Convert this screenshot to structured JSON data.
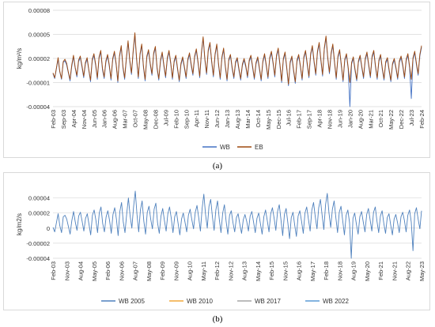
{
  "captions": {
    "a": "(a)",
    "b": "(b)"
  },
  "chart_data": [
    {
      "type": "line",
      "ylabel": "kg/m²/s",
      "ylim": [
        -4e-05,
        8e-05
      ],
      "yticks": [
        "0.00008",
        "0.00005",
        "0.00002",
        "-0.00001",
        "-0.00004"
      ],
      "ytick_values": [
        8e-05,
        5e-05,
        2e-05,
        -1e-05,
        -4e-05
      ],
      "xticks": [
        "Feb-03",
        "Sep-03",
        "Apr-04",
        "Nov-04",
        "Jun-05",
        "Jan-06",
        "Aug-06",
        "Mar-07",
        "Oct-07",
        "May-08",
        "Dec-08",
        "Jul-09",
        "Feb-10",
        "Sep-10",
        "Apr-11",
        "Nov-11",
        "Jun-12",
        "Jan-13",
        "Aug-13",
        "Mar-14",
        "Oct-14",
        "May-15",
        "Dec-15",
        "Jul-16",
        "Feb-17",
        "Sep-17",
        "Apr-18",
        "Nov-18",
        "Jun-19",
        "Jan-20",
        "Aug-20",
        "Mar-21",
        "Oct-21",
        "May-22",
        "Dec-22",
        "Jul-23",
        "Feb-24"
      ],
      "legend": {
        "placement": "bottom",
        "entries": [
          "WB",
          "EB"
        ]
      },
      "colors": {
        "WB": "#4472c4",
        "EB": "#9e480e"
      },
      "grid": true,
      "x": {
        "start": "Feb-03",
        "end": "Feb-24",
        "step": "month"
      },
      "series": [
        {
          "name": "EB",
          "values": [
            2e-06,
            -4e-06,
            8e-06,
            2.1e-05,
            4e-06,
            -5e-06,
            1.6e-05,
            1.9e-05,
            1.4e-05,
            3e-06,
            -6e-06,
            1.2e-05,
            2.4e-05,
            9e-06,
            -1e-06,
            1.8e-05,
            2.3e-05,
            1.1e-05,
            -2e-06,
            1.5e-05,
            2.1e-05,
            6e-06,
            -7e-06,
            1.9e-05,
            2.6e-05,
            1.3e-05,
            -4e-06,
            2.2e-05,
            3e-05,
            8e-06,
            -3e-06,
            1.7e-05,
            2.5e-05,
            1.2e-05,
            -5e-06,
            2e-05,
            2.9e-05,
            1.4e-05,
            -8e-06,
            2.4e-05,
            3.6e-05,
            1e-05,
            -4e-06,
            2.1e-05,
            4.2e-05,
            1.8e-05,
            2e-06,
            3e-05,
            5.2e-05,
            2e-05,
            -3e-06,
            2.6e-05,
            3.8e-05,
            1.1e-05,
            -6e-06,
            2.3e-05,
            3.1e-05,
            1.4e-05,
            1e-06,
            2.7e-05,
            3.5e-05,
            9e-06,
            -5e-06,
            1.8e-05,
            2.8e-05,
            1.2e-05,
            -2e-06,
            2.1e-05,
            3e-05,
            1.5e-05,
            -4e-06,
            1.7e-05,
            2.4e-05,
            8e-06,
            -7e-06,
            1.4e-05,
            2.2e-05,
            1e-05,
            -3e-06,
            1.9e-05,
            2.7e-05,
            1.3e-05,
            1e-06,
            2.3e-05,
            3.2e-05,
            1.6e-05,
            -2e-06,
            2.8e-05,
            4.7e-05,
            2e-05,
            2e-06,
            3.1e-05,
            4e-05,
            1.7e-05,
            -1e-06,
            2.6e-05,
            3.8e-05,
            1.4e-05,
            -4e-06,
            2.2e-05,
            3.3e-05,
            1.1e-05,
            -6e-06,
            1.9e-05,
            2.5e-05,
            9e-06,
            -3e-06,
            1.6e-05,
            2.1e-05,
            7e-06,
            -5e-06,
            1.3e-05,
            2e-05,
            1.1e-05,
            -2e-06,
            1.8e-05,
            2.4e-05,
            1e-05,
            -4e-06,
            1.5e-05,
            2.2e-05,
            8e-06,
            -6e-06,
            1.7e-05,
            2.6e-05,
            1.2e-05,
            -3e-06,
            2.1e-05,
            2.9e-05,
            1.5e-05,
            -1e-06,
            2.4e-05,
            3.3e-05,
            1.3e-05,
            -8e-06,
            2e-05,
            2.8e-05,
            9e-06,
            -1.2e-05,
            1.6e-05,
            2.3e-05,
            6e-06,
            -9e-06,
            1.8e-05,
            2.5e-05,
            1.1e-05,
            -5e-06,
            2.2e-05,
            3e-05,
            1.4e-05,
            -2e-06,
            2.6e-05,
            3.6e-05,
            1.7e-05,
            1e-06,
            2.9e-05,
            4e-05,
            1.9e-05,
            0.0,
            3.3e-05,
            4.8e-05,
            2.2e-05,
            3e-06,
            2.7e-05,
            3.8e-05,
            1.6e-05,
            -4e-06,
            2.3e-05,
            3.1e-05,
            1.2e-05,
            -7e-06,
            1.9e-05,
            2.6e-05,
            9e-06,
            -1e-05,
            1.5e-05,
            2.2e-05,
            7e-06,
            -6e-06,
            1.7e-05,
            2.4e-05,
            1e-05,
            -3e-06,
            2e-05,
            2.8e-05,
            1.3e-05,
            -2e-06,
            2.3e-05,
            3e-05,
            1.1e-05,
            -4e-06,
            1.8e-05,
            2.5e-05,
            8e-06,
            -5e-06,
            1.6e-05,
            2.1e-05,
            6e-06,
            -7e-06,
            1.4e-05,
            2e-05,
            9e-06,
            -4e-06,
            1.7e-05,
            2.3e-05,
            1.2e-05,
            -3e-06,
            1.9e-05,
            2.6e-05,
            1e-05,
            -6e-06,
            2.1e-05,
            2.9e-05,
            1.4e-05,
            1e-06,
            2.5e-05,
            3.6e-05
          ],
          "note_values_start": "Feb-03"
        },
        {
          "name": "WB",
          "values": [
            1e-06,
            -5e-06,
            7e-06,
            1.9e-05,
            3e-06,
            -6e-06,
            1.5e-05,
            1.7e-05,
            1.2e-05,
            2e-06,
            -8e-06,
            1e-05,
            2.2e-05,
            8e-06,
            -3e-06,
            1.6e-05,
            2.1e-05,
            9e-06,
            -4e-06,
            1.3e-05,
            1.9e-05,
            5e-06,
            -9e-06,
            1.7e-05,
            2.4e-05,
            1.1e-05,
            -6e-06,
            2e-05,
            2.8e-05,
            6e-06,
            -5e-06,
            1.5e-05,
            2.3e-05,
            1e-05,
            -7e-06,
            1.8e-05,
            2.7e-05,
            1.2e-05,
            -1e-05,
            2.2e-05,
            3.4e-05,
            8e-06,
            -6e-06,
            1.9e-05,
            4e-05,
            1.6e-05,
            0.0,
            2.8e-05,
            4.9e-05,
            1.8e-05,
            -5e-06,
            2.4e-05,
            3.6e-05,
            9e-06,
            -8e-06,
            2.1e-05,
            2.9e-05,
            1.2e-05,
            -1e-06,
            2.5e-05,
            3.3e-05,
            7e-06,
            -7e-06,
            1.6e-05,
            2.6e-05,
            1e-05,
            -4e-06,
            1.9e-05,
            2.8e-05,
            1.3e-05,
            -6e-06,
            1.5e-05,
            2.2e-05,
            6e-06,
            -9e-06,
            1.2e-05,
            2e-05,
            8e-06,
            -5e-06,
            1.7e-05,
            2.5e-05,
            1.1e-05,
            -1e-06,
            2.1e-05,
            3e-05,
            1.4e-05,
            -4e-06,
            2.6e-05,
            4.5e-05,
            1.8e-05,
            0.0,
            2.9e-05,
            3.8e-05,
            1.5e-05,
            -3e-06,
            2.4e-05,
            3.6e-05,
            1.2e-05,
            -6e-06,
            2e-05,
            3.1e-05,
            9e-06,
            -8e-06,
            1.7e-05,
            2.3e-05,
            7e-06,
            -5e-06,
            1.4e-05,
            1.9e-05,
            5e-06,
            -7e-06,
            1.1e-05,
            1.8e-05,
            9e-06,
            -4e-06,
            1.6e-05,
            2.2e-05,
            8e-06,
            -6e-06,
            1.3e-05,
            2e-05,
            6e-06,
            -8e-06,
            1.5e-05,
            2.4e-05,
            1e-05,
            -5e-06,
            1.9e-05,
            2.7e-05,
            1.3e-05,
            -3e-06,
            2.2e-05,
            3.1e-05,
            1.1e-05,
            -1e-05,
            1.8e-05,
            2.6e-05,
            7e-06,
            -1.4e-05,
            1.4e-05,
            2.1e-05,
            4e-06,
            -1.1e-05,
            1.6e-05,
            2.3e-05,
            9e-06,
            -7e-06,
            2e-05,
            2.8e-05,
            1.2e-05,
            -4e-06,
            2.4e-05,
            3.4e-05,
            1.5e-05,
            -1e-06,
            2.7e-05,
            3.8e-05,
            1.7e-05,
            -2e-06,
            3.1e-05,
            4.6e-05,
            2e-05,
            1e-06,
            2.5e-05,
            3.6e-05,
            1.4e-05,
            -6e-06,
            2.1e-05,
            2.9e-05,
            1e-05,
            -9e-06,
            1.7e-05,
            2.4e-05,
            7e-06,
            -4e-05,
            1.3e-05,
            2e-05,
            5e-06,
            -8e-06,
            1.5e-05,
            2.2e-05,
            8e-06,
            -5e-06,
            1.8e-05,
            2.6e-05,
            1.1e-05,
            -4e-06,
            2.1e-05,
            2.8e-05,
            9e-06,
            -6e-06,
            1.6e-05,
            2.3e-05,
            6e-06,
            -7e-06,
            1.4e-05,
            1.9e-05,
            4e-06,
            -9e-06,
            1.2e-05,
            1.8e-05,
            7e-06,
            -6e-06,
            1.5e-05,
            2.1e-05,
            1e-05,
            -5e-06,
            1.7e-05,
            2.4e-05,
            8e-06,
            -3e-05,
            1.9e-05,
            2.7e-05,
            1.2e-05,
            -1e-06,
            2.3e-05,
            3.4e-05
          ]
        }
      ]
    },
    {
      "type": "line",
      "ylabel": "kg/m2/s",
      "ylim": [
        -4e-05,
        5e-05
      ],
      "yticks": [
        "0.00004",
        "0.00002",
        "0",
        "-0.00002",
        "-0.00004"
      ],
      "ytick_values": [
        4e-05,
        2e-05,
        0,
        -2e-05,
        -4e-05
      ],
      "xticks": [
        "Feb-03",
        "Nov-03",
        "Aug-04",
        "May-05",
        "Feb-06",
        "Nov-06",
        "Aug-07",
        "May-08",
        "Feb-09",
        "Nov-09",
        "Aug-10",
        "May-11",
        "Feb-12",
        "Nov-12",
        "Aug-13",
        "May-14",
        "Feb-15",
        "Nov-15",
        "Aug-16",
        "May-17",
        "Feb-18",
        "Nov-18",
        "Aug-19",
        "May-20",
        "Feb-21",
        "Nov-21",
        "Aug-22",
        "May-23"
      ],
      "legend": {
        "placement": "bottom",
        "entries": [
          "WB 2005",
          "WB 2010",
          "WB 2017",
          "WB 2022"
        ]
      },
      "colors": {
        "WB 2005": "#4f81bd",
        "WB 2010": "#f2a93b",
        "WB 2017": "#a5a5a5",
        "WB 2022": "#5b9bd5"
      },
      "grid": true,
      "x": {
        "start": "Feb-03",
        "end": "Jan-24",
        "step": "month"
      },
      "series": [
        {
          "name": "WB 2005",
          "values": [
            1e-06,
            -5e-06,
            7e-06,
            1.9e-05,
            3e-06,
            -6e-06,
            1.5e-05,
            1.7e-05,
            1.2e-05,
            2e-06,
            -8e-06,
            1e-05,
            2.2e-05,
            8e-06,
            -3e-06,
            1.6e-05,
            2.1e-05,
            9e-06,
            -4e-06,
            1.3e-05,
            1.9e-05,
            5e-06,
            -9e-06,
            1.7e-05,
            2.4e-05,
            1.1e-05,
            -6e-06,
            2e-05,
            2.8e-05,
            6e-06,
            -5e-06,
            1.5e-05,
            2.3e-05,
            1e-05,
            -7e-06,
            1.8e-05,
            2.7e-05,
            1.2e-05,
            -1e-05,
            2.2e-05,
            3.4e-05,
            8e-06,
            -6e-06,
            1.9e-05,
            4e-05,
            1.6e-05,
            0.0,
            2.8e-05,
            4.9e-05,
            1.8e-05,
            -5e-06,
            2.4e-05,
            3.6e-05,
            9e-06,
            -8e-06,
            2.1e-05,
            2.9e-05,
            1.2e-05,
            -1e-06,
            2.5e-05,
            3.3e-05,
            7e-06,
            -7e-06,
            1.6e-05,
            2.6e-05,
            1e-05,
            -4e-06,
            1.9e-05,
            2.8e-05,
            1.3e-05,
            -6e-06,
            1.5e-05,
            2.2e-05,
            6e-06,
            -9e-06,
            1.2e-05,
            2e-05,
            8e-06,
            -5e-06,
            1.7e-05,
            2.5e-05,
            1.1e-05,
            -1e-06,
            2.1e-05,
            3e-05,
            1.4e-05,
            -4e-06,
            2.6e-05,
            4.5e-05,
            1.8e-05,
            0.0,
            2.9e-05,
            3.8e-05,
            1.5e-05,
            -3e-06,
            2.4e-05,
            3.6e-05,
            1.2e-05,
            -6e-06,
            2e-05,
            3.1e-05,
            9e-06,
            -8e-06,
            1.7e-05,
            2.3e-05,
            7e-06,
            -5e-06,
            1.4e-05,
            1.9e-05,
            5e-06,
            -7e-06,
            1.1e-05,
            1.8e-05,
            9e-06,
            -4e-06,
            1.6e-05,
            2.2e-05,
            8e-06,
            -6e-06,
            1.3e-05,
            2e-05,
            6e-06,
            -8e-06,
            1.5e-05,
            2.4e-05,
            1e-05,
            -5e-06,
            1.9e-05,
            2.7e-05,
            1.3e-05,
            -3e-06,
            2.2e-05,
            3.1e-05,
            1.1e-05,
            -1e-05,
            1.8e-05,
            2.6e-05,
            7e-06,
            -1.4e-05,
            1.4e-05,
            2.1e-05,
            4e-06,
            -1.1e-05,
            1.6e-05,
            2.3e-05,
            9e-06,
            -7e-06,
            2e-05,
            2.8e-05,
            1.2e-05,
            -4e-06,
            2.4e-05,
            3.4e-05,
            1.5e-05,
            -1e-06,
            2.7e-05,
            3.8e-05,
            1.7e-05,
            -2e-06,
            3.1e-05,
            4.6e-05,
            2e-05,
            1e-06,
            2.5e-05,
            3.6e-05,
            1.4e-05,
            -6e-06,
            2.1e-05,
            2.9e-05,
            1e-05,
            -9e-06,
            1.7e-05,
            2.4e-05,
            7e-06,
            -4e-05,
            1.3e-05,
            2e-05,
            5e-06,
            -8e-06,
            1.5e-05,
            2.2e-05,
            8e-06,
            -5e-06,
            1.8e-05,
            2.6e-05,
            1.1e-05,
            -4e-06,
            2.1e-05,
            2.8e-05,
            9e-06,
            -6e-06,
            1.6e-05,
            2.3e-05,
            6e-06,
            -7e-06,
            1.4e-05,
            1.9e-05,
            4e-06,
            -9e-06,
            1.2e-05,
            1.8e-05,
            7e-06,
            -6e-06,
            1.5e-05,
            2.1e-05,
            1e-05,
            -5e-06,
            1.7e-05,
            2.4e-05,
            8e-06,
            -3e-05,
            1.9e-05,
            2.7e-05,
            1.2e-05,
            -1e-06,
            2.3e-05
          ]
        },
        {
          "name": "WB 2010",
          "values": []
        },
        {
          "name": "WB 2017",
          "values": []
        },
        {
          "name": "WB 2022",
          "values": []
        }
      ]
    }
  ]
}
